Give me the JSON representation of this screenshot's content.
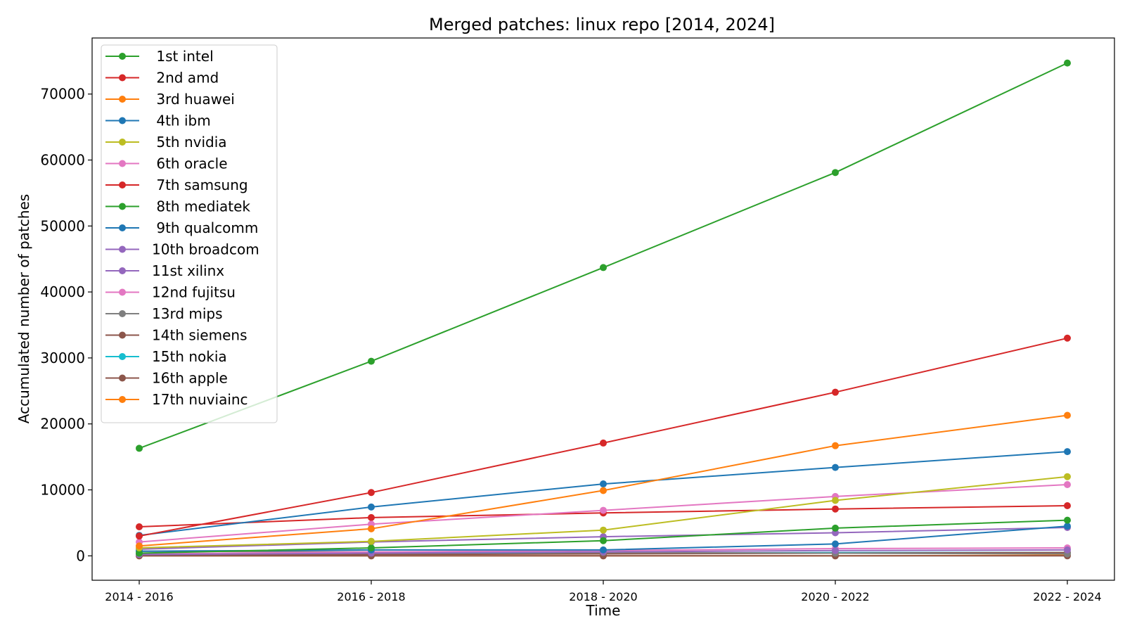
{
  "chart_data": {
    "type": "line",
    "title": "Merged patches: linux repo [2014, 2024]",
    "xlabel": "Time",
    "ylabel": "Accumulated number of patches",
    "categories": [
      "2014 - 2016",
      "2016 - 2018",
      "2018 - 2020",
      "2020 - 2022",
      "2022 - 2024"
    ],
    "yticks": [
      0,
      10000,
      20000,
      30000,
      40000,
      50000,
      60000,
      70000
    ],
    "ylim": [
      -3700,
      78500
    ],
    "grid": false,
    "legend_position": "upper-left",
    "series": [
      {
        "name": " 1st intel",
        "color": "#2ca02c",
        "values": [
          16300,
          29500,
          43700,
          58100,
          74700
        ]
      },
      {
        "name": " 2nd amd",
        "color": "#d62728",
        "values": [
          3000,
          9600,
          17100,
          24800,
          33000
        ]
      },
      {
        "name": " 3rd huawei",
        "color": "#ff7f0e",
        "values": [
          1500,
          4100,
          9900,
          16700,
          21300
        ]
      },
      {
        "name": " 4th ibm",
        "color": "#1f77b4",
        "values": [
          3100,
          7400,
          10900,
          13400,
          15800
        ]
      },
      {
        "name": " 5th nvidia",
        "color": "#bcbd22",
        "values": [
          1200,
          2200,
          3900,
          8400,
          12000
        ]
      },
      {
        "name": " 6th oracle",
        "color": "#e377c2",
        "values": [
          2100,
          4800,
          6900,
          9000,
          10800
        ]
      },
      {
        "name": " 7th samsung",
        "color": "#d62728",
        "values": [
          4400,
          5800,
          6500,
          7100,
          7600
        ]
      },
      {
        "name": " 8th mediatek",
        "color": "#2ca02c",
        "values": [
          400,
          1200,
          2300,
          4200,
          5400
        ]
      },
      {
        "name": " 9th qualcomm",
        "color": "#1f77b4",
        "values": [
          700,
          900,
          900,
          1800,
          4500
        ]
      },
      {
        "name": "10th broadcom",
        "color": "#9467bd",
        "values": [
          1000,
          2100,
          2900,
          3500,
          4300
        ]
      },
      {
        "name": "11st xilinx",
        "color": "#9467bd",
        "values": [
          200,
          400,
          600,
          800,
          900
        ]
      },
      {
        "name": "12nd fujitsu",
        "color": "#e377c2",
        "values": [
          300,
          600,
          800,
          1100,
          1200
        ]
      },
      {
        "name": "13rd mips",
        "color": "#7f7f7f",
        "values": [
          700,
          600,
          500,
          400,
          300
        ]
      },
      {
        "name": "14th siemens",
        "color": "#8c564b",
        "values": [
          100,
          200,
          300,
          400,
          500
        ]
      },
      {
        "name": "15th nokia",
        "color": "#17becf",
        "values": [
          300,
          400,
          400,
          500,
          500
        ]
      },
      {
        "name": "16th apple",
        "color": "#8c564b",
        "values": [
          0,
          0,
          0,
          0,
          0
        ]
      },
      {
        "name": "17th nuviainc",
        "color": "#ff7f0e",
        "values": [
          0,
          0,
          0,
          0,
          100
        ]
      }
    ]
  }
}
